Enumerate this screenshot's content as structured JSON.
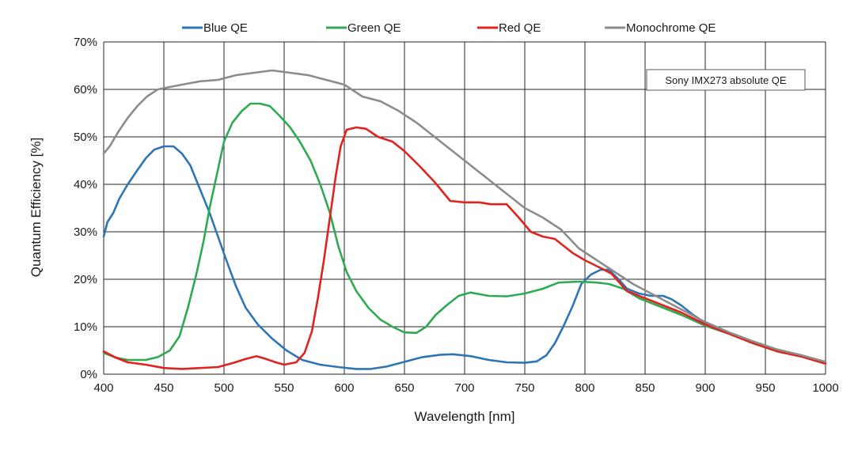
{
  "chart_data": {
    "type": "line",
    "title": "",
    "xlabel": "Wavelength [nm]",
    "ylabel": "Quantum Efficiency [%]",
    "xlim": [
      400,
      1000
    ],
    "ylim": [
      0,
      70
    ],
    "xticks": [
      400,
      450,
      500,
      550,
      600,
      650,
      700,
      750,
      800,
      850,
      900,
      950,
      1000
    ],
    "xtick_labels": [
      "400",
      "450",
      "500",
      "550",
      "600",
      "650",
      "700",
      "750",
      "800",
      "850",
      "900",
      "950",
      "1000"
    ],
    "yticks": [
      0,
      10,
      20,
      30,
      40,
      50,
      60,
      70
    ],
    "ytick_labels": [
      "0%",
      "10%",
      "20%",
      "30%",
      "40%",
      "50%",
      "60%",
      "70%"
    ],
    "grid": true,
    "legend_position": "top",
    "annotation": "Sony IMX273 absolute QE",
    "series": [
      {
        "name": "Blue QE",
        "color": "#2e75b6",
        "points": [
          [
            400,
            29
          ],
          [
            403,
            32
          ],
          [
            408,
            34
          ],
          [
            413,
            37
          ],
          [
            420,
            40
          ],
          [
            428,
            43
          ],
          [
            435,
            45.5
          ],
          [
            442,
            47.3
          ],
          [
            450,
            48
          ],
          [
            458,
            48
          ],
          [
            465,
            46.5
          ],
          [
            472,
            44
          ],
          [
            480,
            39
          ],
          [
            488,
            34
          ],
          [
            495,
            29
          ],
          [
            502,
            24
          ],
          [
            510,
            18.5
          ],
          [
            518,
            14
          ],
          [
            528,
            10.5
          ],
          [
            540,
            7.5
          ],
          [
            552,
            5
          ],
          [
            565,
            3
          ],
          [
            580,
            2
          ],
          [
            595,
            1.5
          ],
          [
            610,
            1.1
          ],
          [
            622,
            1.1
          ],
          [
            635,
            1.6
          ],
          [
            650,
            2.6
          ],
          [
            665,
            3.6
          ],
          [
            680,
            4.1
          ],
          [
            690,
            4.2
          ],
          [
            705,
            3.8
          ],
          [
            720,
            3
          ],
          [
            735,
            2.5
          ],
          [
            750,
            2.4
          ],
          [
            760,
            2.7
          ],
          [
            768,
            4
          ],
          [
            775,
            6.5
          ],
          [
            782,
            10
          ],
          [
            790,
            14.5
          ],
          [
            797,
            19
          ],
          [
            805,
            21
          ],
          [
            813,
            22
          ],
          [
            820,
            22
          ],
          [
            828,
            20
          ],
          [
            835,
            18
          ],
          [
            845,
            17
          ],
          [
            855,
            16.5
          ],
          [
            865,
            16.5
          ],
          [
            872,
            15.8
          ],
          [
            880,
            14.5
          ],
          [
            890,
            12.5
          ],
          [
            900,
            10.8
          ],
          [
            915,
            9.2
          ],
          [
            930,
            7.8
          ],
          [
            945,
            6.3
          ],
          [
            960,
            4.9
          ],
          [
            975,
            4
          ],
          [
            990,
            3.2
          ],
          [
            1000,
            2.5
          ]
        ]
      },
      {
        "name": "Green QE",
        "color": "#2eaa54",
        "points": [
          [
            400,
            4.5
          ],
          [
            410,
            3.5
          ],
          [
            420,
            3
          ],
          [
            435,
            3
          ],
          [
            445,
            3.6
          ],
          [
            455,
            5
          ],
          [
            463,
            8
          ],
          [
            470,
            14
          ],
          [
            477,
            21
          ],
          [
            483,
            28
          ],
          [
            488,
            35
          ],
          [
            494,
            42
          ],
          [
            500,
            49
          ],
          [
            507,
            53
          ],
          [
            515,
            55.5
          ],
          [
            522,
            57
          ],
          [
            530,
            57
          ],
          [
            538,
            56.5
          ],
          [
            546,
            54.5
          ],
          [
            555,
            52
          ],
          [
            563,
            49
          ],
          [
            572,
            45
          ],
          [
            580,
            40
          ],
          [
            588,
            34
          ],
          [
            595,
            27
          ],
          [
            602,
            21.5
          ],
          [
            610,
            17.5
          ],
          [
            620,
            14
          ],
          [
            630,
            11.5
          ],
          [
            640,
            10
          ],
          [
            650,
            8.8
          ],
          [
            660,
            8.7
          ],
          [
            668,
            10
          ],
          [
            676,
            12.5
          ],
          [
            685,
            14.5
          ],
          [
            695,
            16.5
          ],
          [
            705,
            17.2
          ],
          [
            720,
            16.5
          ],
          [
            735,
            16.4
          ],
          [
            750,
            17
          ],
          [
            765,
            18
          ],
          [
            778,
            19.3
          ],
          [
            795,
            19.5
          ],
          [
            810,
            19.3
          ],
          [
            820,
            19
          ],
          [
            832,
            18
          ],
          [
            845,
            16
          ],
          [
            860,
            14.5
          ],
          [
            880,
            12.5
          ],
          [
            900,
            10.2
          ],
          [
            920,
            8.5
          ],
          [
            940,
            6.5
          ],
          [
            960,
            4.8
          ],
          [
            980,
            3.8
          ],
          [
            1000,
            2.3
          ]
        ]
      },
      {
        "name": "Red QE",
        "color": "#e0231c",
        "points": [
          [
            400,
            4.8
          ],
          [
            410,
            3.5
          ],
          [
            420,
            2.5
          ],
          [
            435,
            2
          ],
          [
            450,
            1.3
          ],
          [
            465,
            1.1
          ],
          [
            480,
            1.3
          ],
          [
            495,
            1.5
          ],
          [
            508,
            2.4
          ],
          [
            518,
            3.2
          ],
          [
            527,
            3.8
          ],
          [
            535,
            3.2
          ],
          [
            543,
            2.5
          ],
          [
            550,
            2
          ],
          [
            560,
            2.5
          ],
          [
            567,
            4.5
          ],
          [
            573,
            9
          ],
          [
            578,
            16
          ],
          [
            583,
            24
          ],
          [
            588,
            33
          ],
          [
            593,
            42
          ],
          [
            597,
            48
          ],
          [
            602,
            51.5
          ],
          [
            610,
            52
          ],
          [
            618,
            51.7
          ],
          [
            628,
            50
          ],
          [
            640,
            49
          ],
          [
            650,
            47
          ],
          [
            662,
            44
          ],
          [
            675,
            40.5
          ],
          [
            688,
            36.5
          ],
          [
            700,
            36.2
          ],
          [
            712,
            36.2
          ],
          [
            722,
            35.8
          ],
          [
            735,
            35.8
          ],
          [
            745,
            33
          ],
          [
            755,
            30
          ],
          [
            765,
            29
          ],
          [
            775,
            28.5
          ],
          [
            790,
            25.5
          ],
          [
            800,
            24
          ],
          [
            812,
            22.5
          ],
          [
            822,
            21.2
          ],
          [
            835,
            17.5
          ],
          [
            845,
            16.5
          ],
          [
            860,
            15
          ],
          [
            880,
            13
          ],
          [
            900,
            10.5
          ],
          [
            920,
            8.5
          ],
          [
            940,
            6.5
          ],
          [
            960,
            4.8
          ],
          [
            980,
            3.7
          ],
          [
            1000,
            2.2
          ]
        ]
      },
      {
        "name": "Monochrome QE",
        "color": "#8c8c8c",
        "points": [
          [
            400,
            46.5
          ],
          [
            405,
            48
          ],
          [
            412,
            51
          ],
          [
            420,
            54
          ],
          [
            428,
            56.5
          ],
          [
            436,
            58.5
          ],
          [
            445,
            60
          ],
          [
            455,
            60.5
          ],
          [
            465,
            61
          ],
          [
            480,
            61.7
          ],
          [
            495,
            62
          ],
          [
            510,
            63
          ],
          [
            525,
            63.5
          ],
          [
            540,
            64
          ],
          [
            555,
            63.5
          ],
          [
            570,
            63
          ],
          [
            585,
            62
          ],
          [
            600,
            61
          ],
          [
            615,
            58.5
          ],
          [
            630,
            57.5
          ],
          [
            645,
            55.5
          ],
          [
            660,
            53
          ],
          [
            675,
            50
          ],
          [
            690,
            47
          ],
          [
            705,
            44
          ],
          [
            720,
            41
          ],
          [
            735,
            38
          ],
          [
            750,
            35
          ],
          [
            765,
            33
          ],
          [
            780,
            30.5
          ],
          [
            795,
            26.5
          ],
          [
            810,
            24
          ],
          [
            825,
            21.5
          ],
          [
            840,
            19
          ],
          [
            855,
            17
          ],
          [
            870,
            15
          ],
          [
            885,
            13
          ],
          [
            900,
            11
          ],
          [
            920,
            8.8
          ],
          [
            940,
            6.9
          ],
          [
            960,
            5.2
          ],
          [
            980,
            4
          ],
          [
            1000,
            2.6
          ]
        ]
      }
    ]
  }
}
